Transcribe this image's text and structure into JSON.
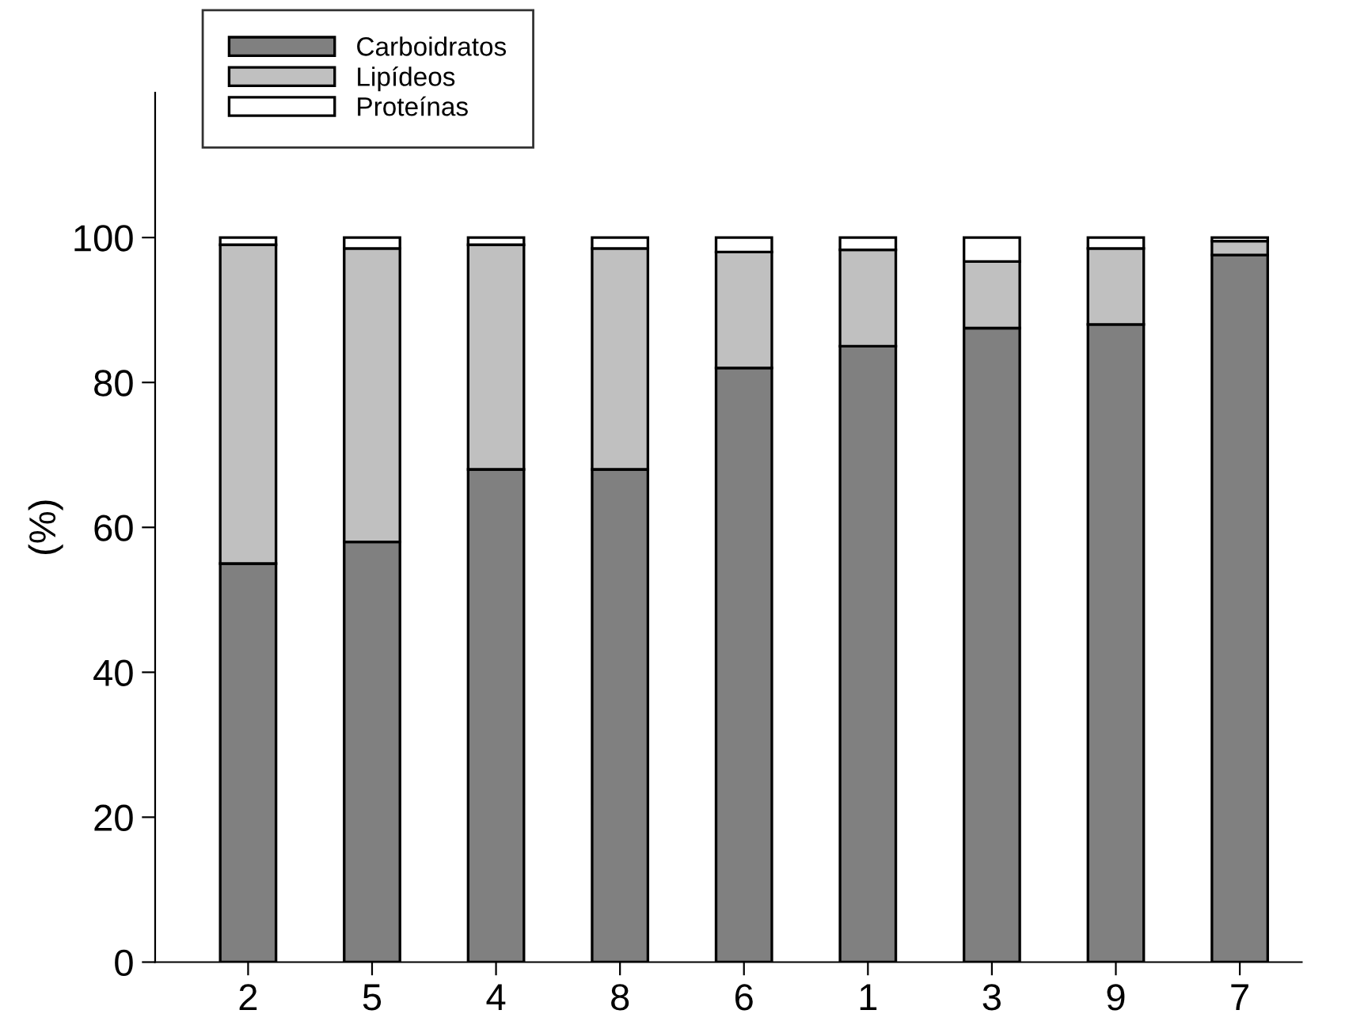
{
  "chart_data": {
    "type": "bar",
    "stacked": true,
    "ylabel": "(%)",
    "categories": [
      "2",
      "5",
      "4",
      "8",
      "6",
      "1",
      "3",
      "9",
      "7"
    ],
    "series": [
      {
        "name": "Carboidratos",
        "color": "#808080",
        "values": [
          55,
          58,
          68,
          68,
          82,
          85,
          87.5,
          88,
          97.6
        ]
      },
      {
        "name": "Lipídeos",
        "color": "#c0c0c0",
        "values": [
          44,
          40.5,
          31,
          30.5,
          16,
          13.3,
          9.2,
          10.5,
          1.9
        ]
      },
      {
        "name": "Proteínas",
        "color": "#ffffff",
        "values": [
          1,
          1.5,
          1,
          1.5,
          2,
          1.7,
          3.3,
          1.5,
          0.5
        ]
      }
    ],
    "ylim": [
      0,
      120
    ],
    "yticks": [
      0,
      20,
      40,
      60,
      80,
      100
    ],
    "grid": false,
    "legend": "top left"
  }
}
